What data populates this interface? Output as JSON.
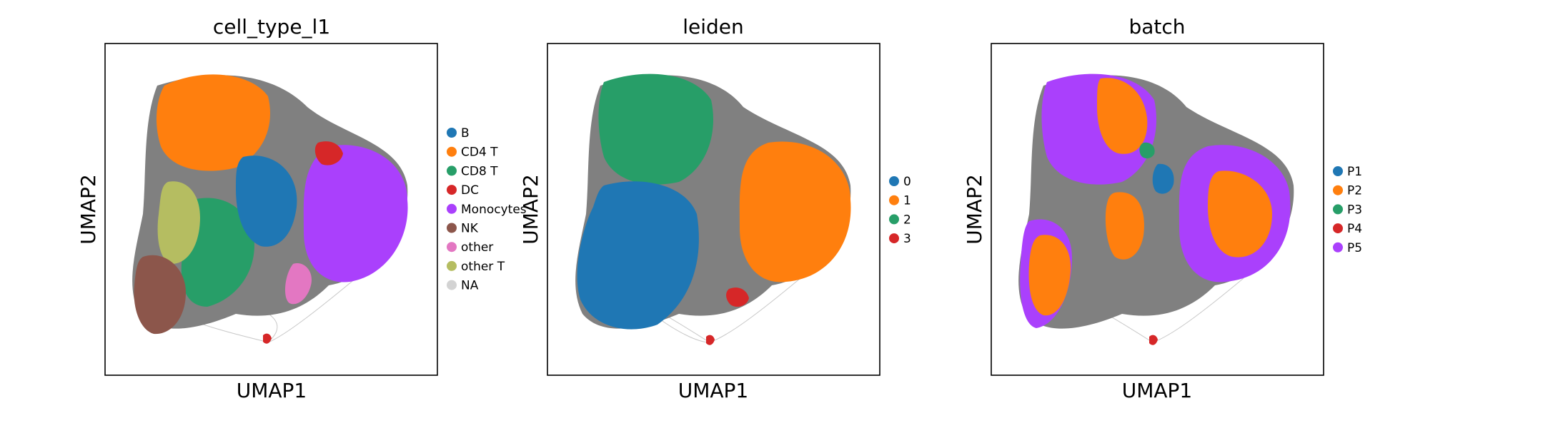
{
  "chart_data": [
    {
      "type": "scatter",
      "title": "cell_type_l1",
      "xlabel": "UMAP1",
      "ylabel": "UMAP2",
      "grid": false,
      "legend_placement": "right",
      "legend": [
        {
          "label": "B",
          "color": "#1f77b4"
        },
        {
          "label": "CD4 T",
          "color": "#ff7f0e"
        },
        {
          "label": "CD8 T",
          "color": "#279e68"
        },
        {
          "label": "DC",
          "color": "#d62728"
        },
        {
          "label": "Monocytes",
          "color": "#aa40fc"
        },
        {
          "label": "NK",
          "color": "#8c564b"
        },
        {
          "label": "other",
          "color": "#e377c2"
        },
        {
          "label": "other T",
          "color": "#b5bd61"
        },
        {
          "label": "NA",
          "color": "#d3d3d3"
        }
      ]
    },
    {
      "type": "scatter",
      "title": "leiden",
      "xlabel": "UMAP1",
      "ylabel": "UMAP2",
      "grid": false,
      "legend_placement": "right",
      "legend": [
        {
          "label": "0",
          "color": "#1f77b4"
        },
        {
          "label": "1",
          "color": "#ff7f0e"
        },
        {
          "label": "2",
          "color": "#279e68"
        },
        {
          "label": "3",
          "color": "#d62728"
        }
      ]
    },
    {
      "type": "scatter",
      "title": "batch",
      "xlabel": "UMAP1",
      "ylabel": "UMAP2",
      "grid": false,
      "legend_placement": "right",
      "legend": [
        {
          "label": "P1",
          "color": "#1f77b4"
        },
        {
          "label": "P2",
          "color": "#ff7f0e"
        },
        {
          "label": "P3",
          "color": "#279e68"
        },
        {
          "label": "P4",
          "color": "#d62728"
        },
        {
          "label": "P5",
          "color": "#aa40fc"
        }
      ]
    }
  ]
}
